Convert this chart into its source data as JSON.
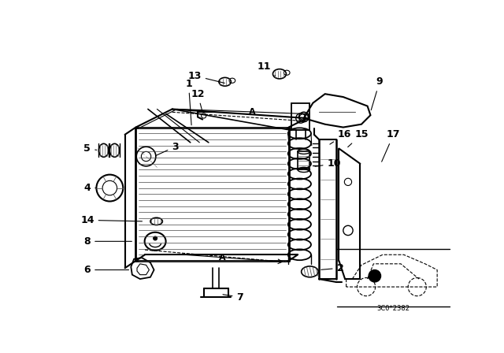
{
  "bg_color": "#ffffff",
  "line_color": "#000000",
  "fig_width": 6.4,
  "fig_height": 4.48,
  "dpi": 100,
  "diagram_code": "3C0*2382"
}
